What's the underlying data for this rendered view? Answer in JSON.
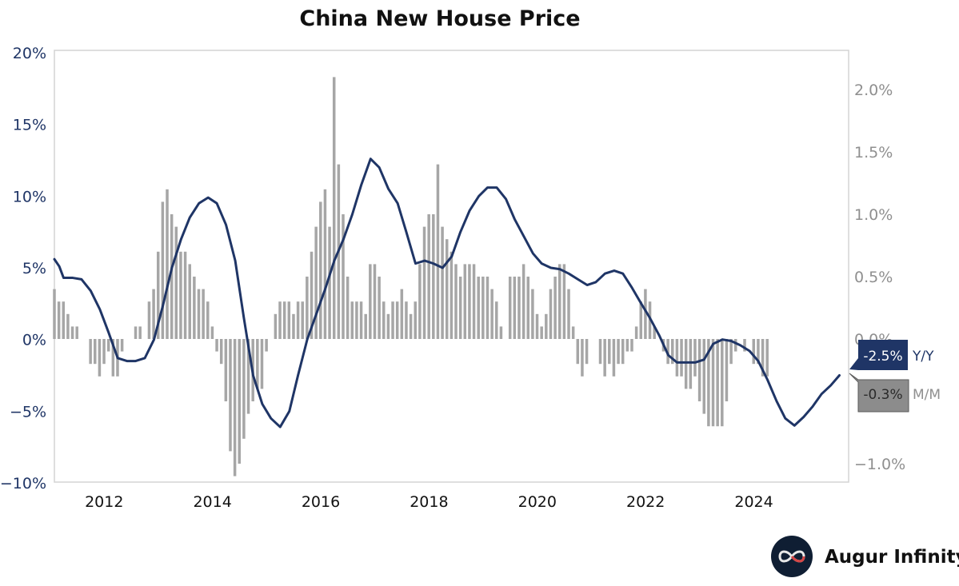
{
  "colors": {
    "yy_line": "#1f3566",
    "mm_bar": "#a6a6a6",
    "mm_label_bg": "#8c8c8c",
    "frame": "#d4d4d4",
    "left_axis": "#1f3566",
    "right_axis": "#8f8f8f"
  },
  "brand": {
    "name": "Augur Infinity",
    "icon": "infinity-logo-icon"
  },
  "chart_data": {
    "type": "bar+line",
    "title": "China New House Price",
    "xlim": [
      2011.08,
      2025.75
    ],
    "left_axis": {
      "ylim": [
        -10,
        20
      ],
      "ticks": [
        20,
        15,
        10,
        5,
        0,
        -5,
        -10
      ],
      "tick_labels": [
        "20%",
        "15%",
        "10%",
        "5%",
        "0%",
        "−5%",
        "−10%"
      ]
    },
    "right_axis": {
      "ylim": [
        -1.2,
        2.3
      ],
      "ticks": [
        2.0,
        1.5,
        1.0,
        0.5,
        0.0,
        -1.0
      ],
      "tick_labels": [
        "2.0%",
        "1.5%",
        "1.0%",
        "0.5%",
        "0.0%",
        "−1.0%"
      ]
    },
    "x_ticks": [
      2012,
      2014,
      2016,
      2018,
      2020,
      2022,
      2024
    ],
    "x_tick_labels": [
      "2012",
      "2014",
      "2016",
      "2018",
      "2020",
      "2022",
      "2024"
    ],
    "grid": false,
    "series": [
      {
        "name": "Y/Y",
        "type": "line",
        "axis": "left",
        "last_label": "-2.5%",
        "points": [
          [
            2011.08,
            5.6
          ],
          [
            2011.17,
            5.1
          ],
          [
            2011.25,
            4.3
          ],
          [
            2011.42,
            4.3
          ],
          [
            2011.58,
            4.2
          ],
          [
            2011.75,
            3.4
          ],
          [
            2011.92,
            2.1
          ],
          [
            2012.08,
            0.5
          ],
          [
            2012.25,
            -1.3
          ],
          [
            2012.42,
            -1.5
          ],
          [
            2012.58,
            -1.5
          ],
          [
            2012.75,
            -1.3
          ],
          [
            2012.92,
            0.0
          ],
          [
            2013.08,
            2.3
          ],
          [
            2013.25,
            5.0
          ],
          [
            2013.42,
            7.0
          ],
          [
            2013.58,
            8.5
          ],
          [
            2013.75,
            9.5
          ],
          [
            2013.92,
            9.9
          ],
          [
            2014.08,
            9.5
          ],
          [
            2014.25,
            8.0
          ],
          [
            2014.42,
            5.5
          ],
          [
            2014.58,
            1.5
          ],
          [
            2014.75,
            -2.5
          ],
          [
            2014.92,
            -4.5
          ],
          [
            2015.08,
            -5.5
          ],
          [
            2015.25,
            -6.1
          ],
          [
            2015.42,
            -5.0
          ],
          [
            2015.58,
            -2.5
          ],
          [
            2015.75,
            0.0
          ],
          [
            2015.92,
            1.8
          ],
          [
            2016.08,
            3.5
          ],
          [
            2016.25,
            5.5
          ],
          [
            2016.42,
            7.0
          ],
          [
            2016.58,
            8.7
          ],
          [
            2016.75,
            10.8
          ],
          [
            2016.92,
            12.6
          ],
          [
            2017.08,
            12.0
          ],
          [
            2017.25,
            10.5
          ],
          [
            2017.42,
            9.5
          ],
          [
            2017.58,
            7.5
          ],
          [
            2017.75,
            5.3
          ],
          [
            2017.92,
            5.5
          ],
          [
            2018.08,
            5.3
          ],
          [
            2018.25,
            5.0
          ],
          [
            2018.42,
            5.8
          ],
          [
            2018.58,
            7.5
          ],
          [
            2018.75,
            9.0
          ],
          [
            2018.92,
            10.0
          ],
          [
            2019.08,
            10.6
          ],
          [
            2019.25,
            10.6
          ],
          [
            2019.42,
            9.8
          ],
          [
            2019.58,
            8.4
          ],
          [
            2019.75,
            7.2
          ],
          [
            2019.92,
            6.0
          ],
          [
            2020.08,
            5.3
          ],
          [
            2020.25,
            5.0
          ],
          [
            2020.42,
            4.9
          ],
          [
            2020.58,
            4.6
          ],
          [
            2020.75,
            4.2
          ],
          [
            2020.92,
            3.8
          ],
          [
            2021.08,
            4.0
          ],
          [
            2021.25,
            4.6
          ],
          [
            2021.42,
            4.8
          ],
          [
            2021.58,
            4.6
          ],
          [
            2021.75,
            3.6
          ],
          [
            2021.92,
            2.5
          ],
          [
            2022.08,
            1.5
          ],
          [
            2022.25,
            0.3
          ],
          [
            2022.42,
            -1.1
          ],
          [
            2022.58,
            -1.6
          ],
          [
            2022.75,
            -1.6
          ],
          [
            2022.92,
            -1.6
          ],
          [
            2023.08,
            -1.4
          ],
          [
            2023.25,
            -0.3
          ],
          [
            2023.42,
            0.0
          ],
          [
            2023.58,
            -0.1
          ],
          [
            2023.75,
            -0.4
          ],
          [
            2023.92,
            -0.8
          ],
          [
            2024.08,
            -1.5
          ],
          [
            2024.25,
            -2.8
          ],
          [
            2024.42,
            -4.3
          ],
          [
            2024.58,
            -5.5
          ],
          [
            2024.75,
            -6.0
          ],
          [
            2024.92,
            -5.4
          ],
          [
            2025.08,
            -4.7
          ],
          [
            2025.25,
            -3.8
          ],
          [
            2025.42,
            -3.2
          ],
          [
            2025.58,
            -2.5
          ]
        ]
      },
      {
        "name": "M/M",
        "type": "bar",
        "axis": "right",
        "last_label": "-0.3%",
        "start": 2011.08,
        "step": 0.08333,
        "values": [
          0.4,
          0.3,
          0.3,
          0.2,
          0.1,
          0.1,
          0.0,
          0.0,
          -0.2,
          -0.2,
          -0.3,
          -0.2,
          -0.1,
          -0.3,
          -0.3,
          -0.1,
          0.0,
          0.0,
          0.1,
          0.1,
          0.0,
          0.3,
          0.4,
          0.7,
          1.1,
          1.2,
          1.0,
          0.9,
          0.7,
          0.7,
          0.6,
          0.5,
          0.4,
          0.4,
          0.3,
          0.1,
          -0.1,
          -0.2,
          -0.5,
          -0.9,
          -1.1,
          -1.0,
          -0.8,
          -0.6,
          -0.5,
          -0.4,
          -0.4,
          -0.1,
          0.0,
          0.2,
          0.3,
          0.3,
          0.3,
          0.2,
          0.3,
          0.3,
          0.5,
          0.7,
          0.9,
          1.1,
          1.2,
          0.9,
          2.1,
          1.4,
          1.0,
          0.5,
          0.3,
          0.3,
          0.3,
          0.2,
          0.6,
          0.6,
          0.5,
          0.3,
          0.2,
          0.3,
          0.3,
          0.4,
          0.3,
          0.2,
          0.3,
          0.6,
          0.9,
          1.0,
          1.0,
          1.4,
          0.9,
          0.8,
          0.7,
          0.6,
          0.5,
          0.6,
          0.6,
          0.6,
          0.5,
          0.5,
          0.5,
          0.4,
          0.3,
          0.1,
          0.0,
          0.5,
          0.5,
          0.5,
          0.6,
          0.5,
          0.4,
          0.2,
          0.1,
          0.2,
          0.4,
          0.5,
          0.6,
          0.6,
          0.4,
          0.1,
          -0.2,
          -0.3,
          -0.2,
          0.0,
          0.0,
          -0.2,
          -0.3,
          -0.2,
          -0.3,
          -0.2,
          -0.2,
          -0.1,
          -0.1,
          0.1,
          0.3,
          0.4,
          0.3,
          0.1,
          0.0,
          -0.1,
          -0.2,
          -0.2,
          -0.3,
          -0.3,
          -0.4,
          -0.4,
          -0.3,
          -0.5,
          -0.6,
          -0.7,
          -0.7,
          -0.7,
          -0.7,
          -0.5,
          -0.2,
          -0.1,
          0.0,
          -0.1,
          0.0,
          -0.2,
          -0.2,
          -0.3,
          -0.3
        ]
      }
    ]
  }
}
